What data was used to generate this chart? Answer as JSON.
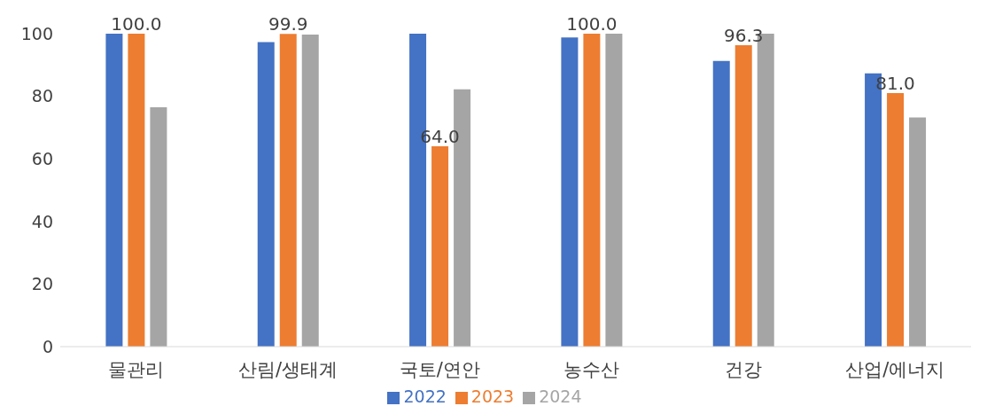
{
  "chart_data": {
    "type": "bar",
    "categories": [
      "물관리",
      "산림/생태계",
      "국토/연안",
      "농수산",
      "건강",
      "산업/에너지"
    ],
    "series": [
      {
        "name": "2022",
        "color": "#4472c4",
        "values": [
          100,
          97.3,
          100,
          98.8,
          91.3,
          87.3
        ]
      },
      {
        "name": "2023",
        "color": "#ed7d31",
        "values": [
          100.0,
          99.9,
          64.0,
          100.0,
          96.3,
          81.0
        ],
        "value_labels": [
          "100.0",
          "99.9",
          "64.0",
          "100.0",
          "96.3",
          "81.0"
        ]
      },
      {
        "name": "2024",
        "color": "#a5a5a5",
        "values": [
          76.5,
          99.7,
          82.2,
          100,
          100,
          73.2
        ]
      }
    ],
    "ylim": [
      0,
      100
    ],
    "yticks": [
      0,
      20,
      40,
      60,
      80,
      100
    ],
    "grid": false,
    "legend": "bottom"
  }
}
